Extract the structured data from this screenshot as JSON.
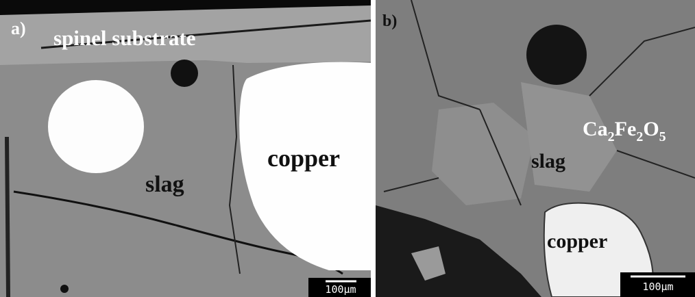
{
  "panels": [
    {
      "label": "a)",
      "annotations": [
        "spinel substrate",
        "slag",
        "copper"
      ],
      "scale_bar": "100μm"
    },
    {
      "label": "b)",
      "formula": [
        "Ca",
        "2",
        "Fe",
        "2",
        "O",
        "5"
      ],
      "annotations": [
        "slag",
        "copper"
      ],
      "scale_bar": "100μm"
    }
  ]
}
